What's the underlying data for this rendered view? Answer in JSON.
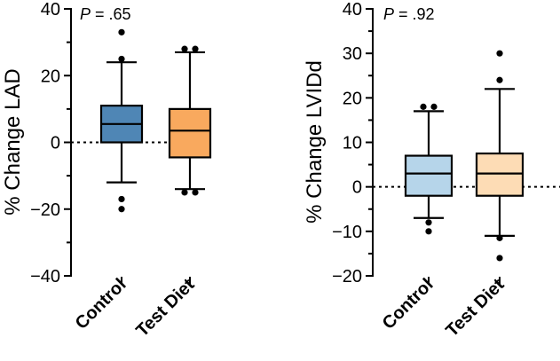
{
  "chart_data": [
    {
      "type": "box",
      "ylabel": "% Change LAD",
      "ylim": [
        -40,
        40
      ],
      "yticks": [
        40,
        20,
        0,
        -20,
        -40
      ],
      "ytick_labels": [
        "40",
        "20",
        "0",
        "−20",
        "−40"
      ],
      "annotation": {
        "p_italic": "P",
        "p_rest": " = .65"
      },
      "zero_line": true,
      "categories": [
        "Control",
        "Test Diet"
      ],
      "boxes": [
        {
          "name": "Control",
          "color": "#4f86b5",
          "whisker_low": -12,
          "q1": 0,
          "median": 5.5,
          "q3": 11,
          "whisker_high": 24,
          "outliers": [
            33,
            25,
            -17,
            -20
          ]
        },
        {
          "name": "Test Diet",
          "color": "#f9a95e",
          "whisker_low": -14,
          "q1": -4.5,
          "median": 3.5,
          "q3": 10,
          "whisker_high": 27,
          "outliers": [
            28,
            28,
            -15,
            -15
          ]
        }
      ]
    },
    {
      "type": "box",
      "ylabel": "% Change LVIDd",
      "ylim": [
        -20,
        40
      ],
      "yticks": [
        40,
        30,
        20,
        10,
        0,
        -10,
        -20
      ],
      "ytick_labels": [
        "40",
        "30",
        "20",
        "10",
        "0",
        "−10",
        "−20"
      ],
      "annotation": {
        "p_italic": "P",
        "p_rest": " = .92"
      },
      "zero_line": true,
      "categories": [
        "Control",
        "Test Diet"
      ],
      "boxes": [
        {
          "name": "Control",
          "color": "#b6d5ea",
          "whisker_low": -7,
          "q1": -2,
          "median": 3,
          "q3": 7,
          "whisker_high": 17,
          "outliers": [
            18,
            18,
            -8,
            -10
          ]
        },
        {
          "name": "Test Diet",
          "color": "#fddcb5",
          "whisker_low": -11,
          "q1": -2,
          "median": 3,
          "q3": 7.5,
          "whisker_high": 22,
          "outliers": [
            30,
            24,
            -11.5,
            -16
          ]
        }
      ]
    }
  ]
}
